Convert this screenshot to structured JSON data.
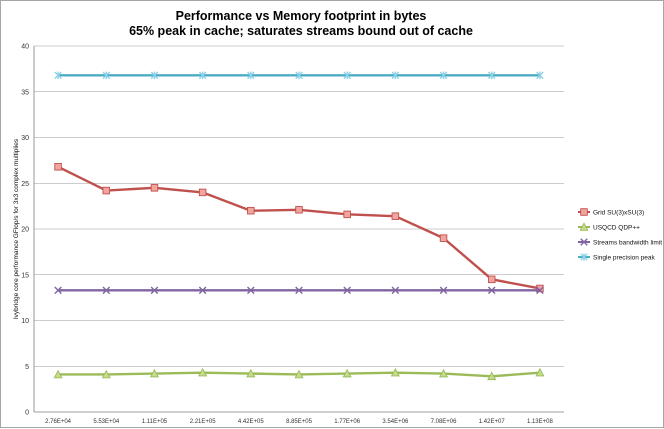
{
  "chart_data": {
    "type": "line",
    "title_lines": [
      "Performance vs Memory footprint in bytes",
      "65% peak in cache; saturates streams bound out of cache"
    ],
    "xlabel": "",
    "ylabel": "Ivybridge core performance GFlop/s for 3x3 complex multiplies",
    "categories": [
      "2.76E+04",
      "5.53E+04",
      "1.11E+05",
      "2.21E+05",
      "4.42E+05",
      "8.85E+05",
      "1.77E+06",
      "3.54E+06",
      "7.08E+06",
      "1.42E+07",
      "1.13E+08"
    ],
    "ylim": [
      0,
      40
    ],
    "yticks": [
      "0",
      "5",
      "10",
      "15",
      "20",
      "25",
      "30",
      "35",
      "40"
    ],
    "grid": true,
    "legend_position": "right",
    "series": [
      {
        "name": "Grid SU(3)xSU(3)",
        "color": "#c0504d",
        "marker": "square",
        "values": [
          26.8,
          24.2,
          24.5,
          24.0,
          22.0,
          22.1,
          21.6,
          21.4,
          19.0,
          14.5,
          13.5
        ]
      },
      {
        "name": "USQCD QDP++",
        "color": "#9bbb59",
        "marker": "triangle",
        "values": [
          4.1,
          4.1,
          4.2,
          4.3,
          4.2,
          4.1,
          4.2,
          4.3,
          4.2,
          3.9,
          4.3
        ]
      },
      {
        "name": "Streams bandwidth limit",
        "color": "#8064a2",
        "marker": "x",
        "values": [
          13.3,
          13.3,
          13.3,
          13.3,
          13.3,
          13.3,
          13.3,
          13.3,
          13.3,
          13.3,
          13.3
        ]
      },
      {
        "name": "Single precision peak",
        "color": "#4bacc6",
        "marker": "star",
        "values": [
          36.8,
          36.8,
          36.8,
          36.8,
          36.8,
          36.8,
          36.8,
          36.8,
          36.8,
          36.8,
          36.8
        ]
      }
    ]
  }
}
